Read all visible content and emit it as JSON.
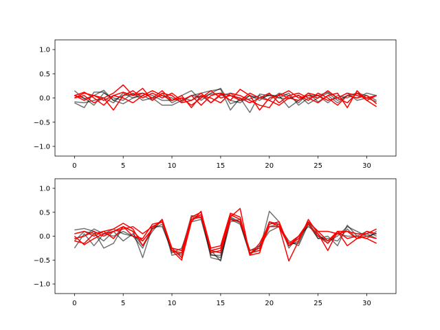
{
  "chart_data": [
    {
      "type": "line",
      "panel": "top",
      "xlim": [
        -2,
        33
      ],
      "ylim": [
        -1.2,
        1.2
      ],
      "xticks": [
        0,
        5,
        10,
        15,
        20,
        25,
        30
      ],
      "yticks": [
        -1.0,
        -0.5,
        0.0,
        0.5,
        1.0
      ],
      "xtick_labels": [
        "0",
        "5",
        "10",
        "15",
        "20",
        "25",
        "30"
      ],
      "ytick_labels": [
        "−1.0",
        "−0.5",
        "0.0",
        "0.5",
        "1.0"
      ],
      "grid": false,
      "x": [
        0,
        1,
        2,
        3,
        4,
        5,
        6,
        7,
        8,
        9,
        10,
        11,
        12,
        13,
        14,
        15,
        16,
        17,
        18,
        19,
        20,
        21,
        22,
        23,
        24,
        25,
        26,
        27,
        28,
        29,
        30,
        31
      ],
      "series": [
        {
          "color": "#000000",
          "opacity": 0.55,
          "values": [
            0.15,
            -0.02,
            0.05,
            0.16,
            -0.05,
            -0.12,
            0.0,
            0.1,
            0.05,
            -0.05,
            -0.05,
            0.05,
            0.15,
            -0.05,
            0.1,
            0.2,
            -0.12,
            -0.05,
            0.05,
            0.0,
            0.05,
            0.0,
            -0.02,
            0.06,
            -0.12,
            0.0,
            0.1,
            -0.05,
            0.05,
            0.0,
            0.1,
            0.05
          ]
        },
        {
          "color": "#000000",
          "opacity": 0.55,
          "values": [
            -0.1,
            -0.2,
            0.12,
            0.12,
            -0.05,
            0.05,
            0.08,
            0.1,
            0.0,
            -0.15,
            -0.15,
            -0.05,
            0.05,
            0.1,
            0.15,
            0.18,
            -0.25,
            0.0,
            -0.3,
            0.08,
            0.05,
            0.05,
            -0.2,
            -0.05,
            0.05,
            0.05,
            0.12,
            0.0,
            0.1,
            -0.05,
            0.0,
            0.05
          ]
        },
        {
          "color": "#000000",
          "opacity": 0.55,
          "values": [
            0.05,
            0.0,
            -0.15,
            0.1,
            0.0,
            -0.05,
            0.1,
            -0.05,
            0.0,
            0.05,
            0.0,
            -0.08,
            0.05,
            0.02,
            0.08,
            0.1,
            -0.05,
            -0.1,
            0.05,
            -0.05,
            0.08,
            0.0,
            0.1,
            -0.15,
            0.0,
            0.05,
            -0.1,
            0.05,
            0.0,
            0.1,
            0.05,
            -0.05
          ]
        },
        {
          "color": "#000000",
          "opacity": 0.55,
          "values": [
            -0.08,
            -0.1,
            -0.05,
            0.0,
            -0.1,
            0.1,
            0.0,
            0.05,
            -0.05,
            0.1,
            -0.1,
            0.0,
            -0.05,
            0.05,
            -0.1,
            0.05,
            0.1,
            -0.05,
            -0.02,
            0.05,
            -0.05,
            0.1,
            0.05,
            -0.1,
            0.1,
            -0.08,
            0.05,
            -0.1,
            0.05,
            0.1,
            0.0,
            -0.08
          ]
        },
        {
          "color": "#ff0000",
          "opacity": 1,
          "values": [
            0.05,
            0.12,
            0.0,
            -0.15,
            0.05,
            0.12,
            0.05,
            0.2,
            -0.05,
            0.1,
            0.05,
            -0.1,
            -0.05,
            0.1,
            -0.1,
            0.08,
            -0.05,
            0.18,
            0.05,
            -0.25,
            0.0,
            0.05,
            0.15,
            0.0,
            0.05,
            0.0,
            0.15,
            0.0,
            0.1,
            0.05,
            0.0,
            0.05
          ]
        },
        {
          "color": "#ff0000",
          "opacity": 1,
          "values": [
            0.0,
            0.05,
            -0.1,
            0.0,
            0.1,
            0.27,
            0.05,
            0.1,
            0.0,
            0.15,
            -0.05,
            0.0,
            -0.15,
            0.0,
            0.15,
            0.0,
            0.05,
            0.0,
            -0.1,
            0.0,
            0.1,
            -0.1,
            0.05,
            0.1,
            0.0,
            -0.1,
            0.05,
            0.1,
            -0.2,
            0.15,
            -0.05,
            0.05
          ]
        },
        {
          "color": "#ff0000",
          "opacity": 1,
          "values": [
            0.05,
            -0.05,
            0.05,
            0.0,
            -0.25,
            0.05,
            0.15,
            0.0,
            0.1,
            0.0,
            0.1,
            -0.05,
            0.05,
            -0.15,
            0.05,
            0.1,
            0.05,
            -0.05,
            0.1,
            0.0,
            -0.05,
            -0.15,
            0.0,
            0.05,
            -0.05,
            0.1,
            0.0,
            -0.15,
            0.05,
            0.0,
            0.05,
            -0.12
          ]
        },
        {
          "color": "#ff0000",
          "opacity": 1,
          "values": [
            0.0,
            0.1,
            0.05,
            -0.05,
            0.05,
            0.0,
            -0.1,
            0.05,
            0.15,
            0.05,
            -0.05,
            0.05,
            -0.2,
            0.05,
            0.0,
            -0.1,
            0.1,
            0.05,
            -0.05,
            -0.15,
            -0.2,
            0.08,
            0.0,
            -0.05,
            0.1,
            0.05,
            -0.05,
            0.0,
            -0.1,
            0.1,
            -0.05,
            -0.18
          ]
        }
      ]
    },
    {
      "type": "line",
      "panel": "bottom",
      "xlim": [
        -2,
        33
      ],
      "ylim": [
        -1.2,
        1.2
      ],
      "xticks": [
        0,
        5,
        10,
        15,
        20,
        25,
        30
      ],
      "yticks": [
        -1.0,
        -0.5,
        0.0,
        0.5,
        1.0
      ],
      "xtick_labels": [
        "0",
        "5",
        "10",
        "15",
        "20",
        "25",
        "30"
      ],
      "ytick_labels": [
        "−1.0",
        "−0.5",
        "0.0",
        "0.5",
        "1.0"
      ],
      "grid": false,
      "x": [
        0,
        1,
        2,
        3,
        4,
        5,
        6,
        7,
        8,
        9,
        10,
        11,
        12,
        13,
        14,
        15,
        16,
        17,
        18,
        19,
        20,
        21,
        22,
        23,
        24,
        25,
        26,
        27,
        28,
        29,
        30,
        31
      ],
      "series": [
        {
          "color": "#000000",
          "opacity": 0.55,
          "values": [
            0.13,
            0.16,
            0.1,
            -0.25,
            -0.15,
            0.2,
            0.1,
            -0.45,
            0.2,
            0.3,
            -0.25,
            -0.3,
            0.43,
            0.4,
            -0.3,
            -0.52,
            0.4,
            0.3,
            -0.35,
            -0.25,
            0.3,
            0.2,
            -0.2,
            -0.1,
            0.3,
            0.0,
            -0.1,
            0.0,
            0.2,
            0.1,
            0.0,
            0.05
          ]
        },
        {
          "color": "#000000",
          "opacity": 0.55,
          "values": [
            -0.25,
            0.05,
            -0.2,
            0.05,
            0.15,
            0.05,
            0.0,
            -0.1,
            0.15,
            0.25,
            -0.35,
            -0.25,
            0.3,
            0.35,
            -0.4,
            -0.4,
            0.35,
            0.25,
            -0.35,
            -0.3,
            0.52,
            0.3,
            -0.25,
            0.0,
            0.2,
            0.05,
            -0.15,
            0.05,
            0.0,
            0.0,
            -0.05,
            0.1
          ]
        },
        {
          "color": "#000000",
          "opacity": 0.55,
          "values": [
            -0.1,
            0.1,
            0.05,
            -0.1,
            0.1,
            -0.1,
            0.05,
            -0.2,
            0.1,
            0.35,
            -0.4,
            -0.35,
            0.35,
            0.45,
            -0.45,
            -0.5,
            0.3,
            0.35,
            -0.3,
            -0.2,
            0.1,
            0.2,
            -0.1,
            -0.2,
            0.25,
            -0.05,
            0.0,
            -0.2,
            0.23,
            0.0,
            0.1,
            0.0
          ]
        },
        {
          "color": "#000000",
          "opacity": 0.55,
          "values": [
            -0.05,
            0.0,
            0.15,
            0.05,
            0.0,
            0.1,
            0.0,
            -0.25,
            0.2,
            0.2,
            -0.3,
            -0.4,
            0.4,
            0.38,
            -0.38,
            -0.45,
            0.38,
            0.28,
            -0.4,
            -0.2,
            0.2,
            0.25,
            -0.15,
            -0.15,
            0.28,
            -0.05,
            -0.05,
            -0.1,
            0.15,
            -0.05,
            0.05,
            -0.05
          ]
        },
        {
          "color": "#ff0000",
          "opacity": 1,
          "values": [
            -0.1,
            -0.15,
            0.05,
            0.1,
            0.15,
            0.27,
            0.15,
            -0.2,
            0.15,
            0.35,
            -0.3,
            -0.5,
            0.3,
            0.52,
            -0.35,
            -0.3,
            0.4,
            0.58,
            -0.4,
            -0.35,
            0.3,
            0.25,
            -0.15,
            0.0,
            0.3,
            0.1,
            -0.1,
            0.1,
            0.1,
            0.05,
            0.05,
            0.15
          ]
        },
        {
          "color": "#ff0000",
          "opacity": 1,
          "values": [
            0.05,
            0.1,
            0.0,
            0.1,
            -0.05,
            0.2,
            0.0,
            -0.05,
            0.25,
            0.3,
            -0.25,
            -0.45,
            0.35,
            0.45,
            -0.3,
            -0.25,
            0.45,
            0.35,
            -0.35,
            -0.3,
            0.2,
            0.2,
            -0.52,
            -0.1,
            0.35,
            0.05,
            -0.3,
            0.1,
            -0.05,
            0.0,
            -0.05,
            -0.15
          ]
        },
        {
          "color": "#ff0000",
          "opacity": 1,
          "values": [
            0.0,
            -0.18,
            -0.05,
            0.05,
            0.1,
            0.15,
            0.2,
            0.05,
            0.2,
            0.3,
            -0.3,
            -0.35,
            0.4,
            0.5,
            -0.25,
            -0.2,
            0.48,
            0.4,
            -0.38,
            -0.15,
            0.25,
            0.3,
            -0.2,
            -0.05,
            0.3,
            0.1,
            0.1,
            0.05,
            0.1,
            -0.05,
            0.1,
            0.05
          ]
        },
        {
          "color": "#ff0000",
          "opacity": 1,
          "values": [
            -0.05,
            0.0,
            0.1,
            0.0,
            0.1,
            0.2,
            0.1,
            -0.1,
            0.15,
            0.35,
            -0.25,
            -0.3,
            0.35,
            0.4,
            -0.3,
            -0.35,
            0.35,
            0.3,
            -0.3,
            -0.25,
            0.3,
            0.2,
            -0.2,
            0.0,
            0.25,
            0.0,
            -0.15,
            0.1,
            -0.2,
            -0.05,
            0.0,
            -0.05
          ]
        }
      ]
    }
  ]
}
